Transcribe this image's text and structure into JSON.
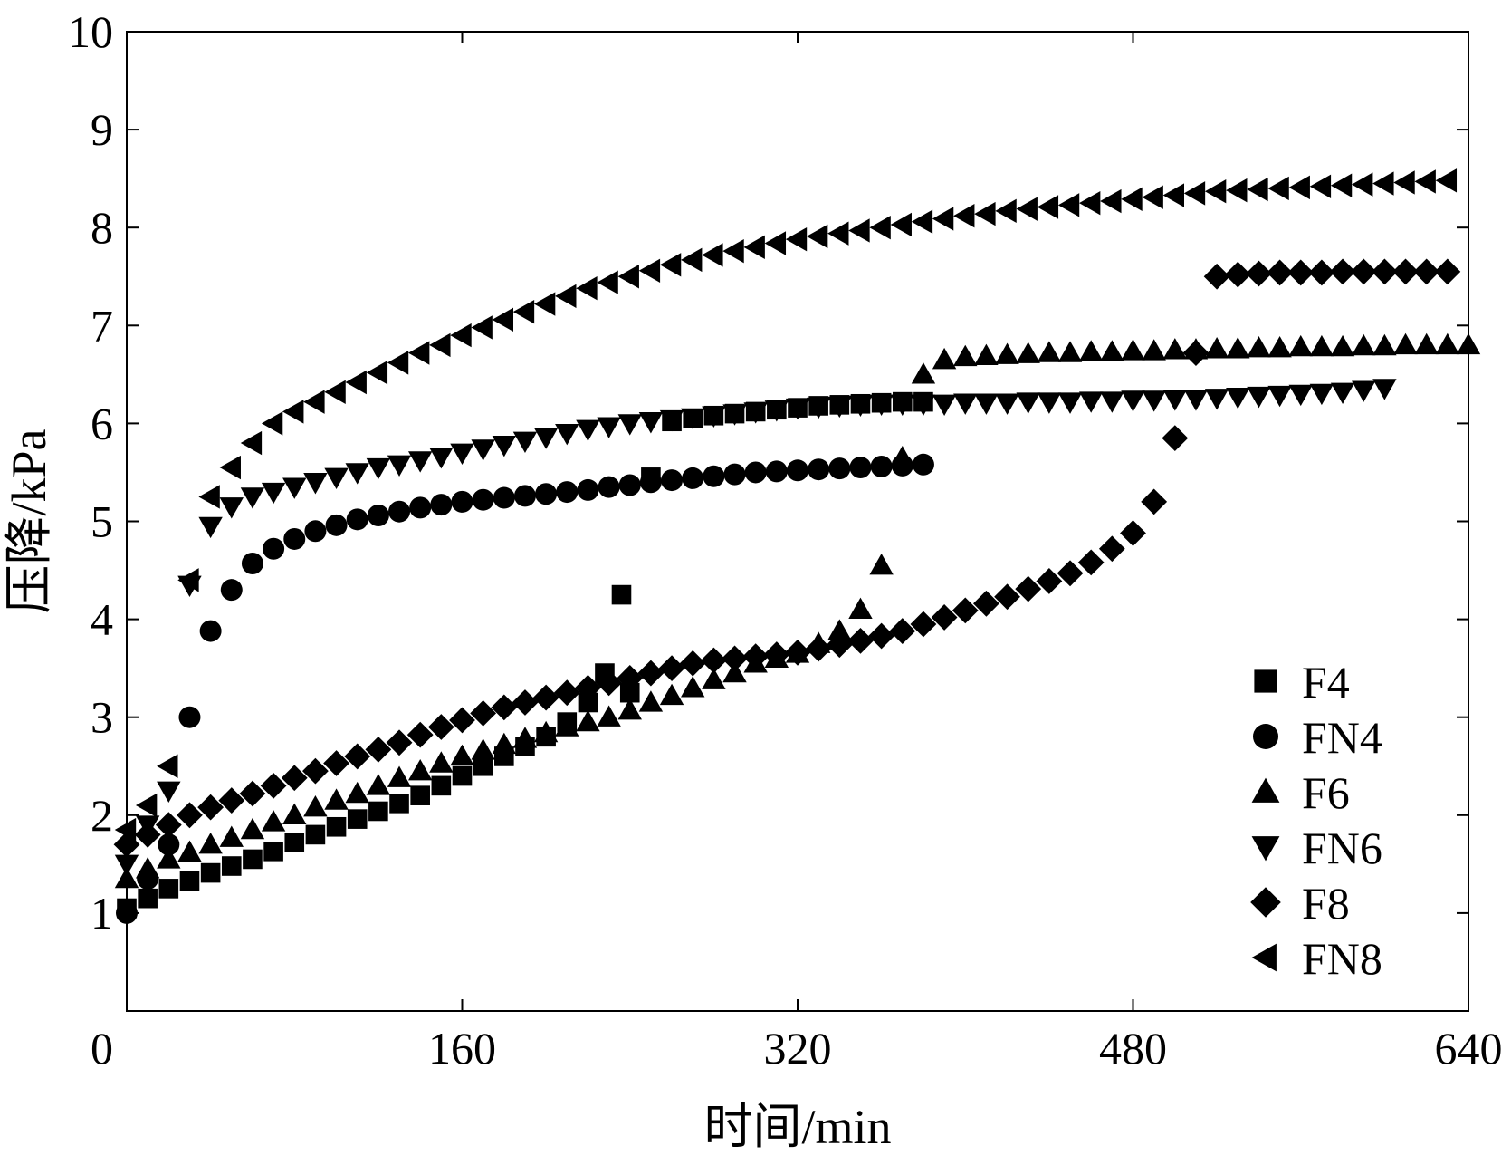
{
  "chart_data": {
    "type": "scatter",
    "xlabel": "时间/min",
    "ylabel": "压降/kPa",
    "xlim": [
      0,
      640
    ],
    "ylim": [
      0,
      10
    ],
    "x_ticks": [
      0,
      160,
      320,
      480,
      640
    ],
    "y_ticks": [
      1,
      2,
      3,
      4,
      5,
      6,
      7,
      8,
      9,
      10
    ],
    "y_zero_label": "0",
    "grid": false,
    "legend_position": "bottom-right",
    "marker_color": "#000000",
    "series": [
      {
        "name": "F4",
        "marker": "square",
        "x": [
          0,
          10,
          20,
          30,
          40,
          50,
          60,
          70,
          80,
          90,
          100,
          110,
          120,
          130,
          140,
          150,
          160,
          170,
          180,
          190,
          200,
          210,
          220,
          228,
          236,
          240,
          250,
          260,
          270,
          280,
          290,
          300,
          310,
          320,
          330,
          340,
          350,
          360,
          370,
          380
        ],
        "y": [
          1.05,
          1.15,
          1.25,
          1.33,
          1.41,
          1.48,
          1.55,
          1.63,
          1.72,
          1.8,
          1.88,
          1.96,
          2.04,
          2.12,
          2.2,
          2.3,
          2.4,
          2.5,
          2.6,
          2.7,
          2.8,
          2.95,
          3.15,
          3.45,
          4.25,
          3.25,
          5.45,
          6.02,
          6.05,
          6.08,
          6.1,
          6.12,
          6.14,
          6.16,
          6.18,
          6.19,
          6.2,
          6.21,
          6.22,
          6.22
        ]
      },
      {
        "name": "FN4",
        "x": [
          0,
          10,
          20,
          30,
          40,
          50,
          60,
          70,
          80,
          90,
          100,
          110,
          120,
          130,
          140,
          150,
          160,
          170,
          180,
          190,
          200,
          210,
          220,
          230,
          240,
          250,
          260,
          270,
          280,
          290,
          300,
          310,
          320,
          330,
          340,
          350,
          360,
          370,
          380
        ],
        "y": [
          1.0,
          1.35,
          1.7,
          3.0,
          3.88,
          4.3,
          4.57,
          4.72,
          4.82,
          4.9,
          4.96,
          5.02,
          5.06,
          5.1,
          5.14,
          5.17,
          5.2,
          5.22,
          5.24,
          5.26,
          5.28,
          5.3,
          5.32,
          5.35,
          5.37,
          5.4,
          5.42,
          5.44,
          5.46,
          5.48,
          5.5,
          5.51,
          5.52,
          5.53,
          5.54,
          5.55,
          5.56,
          5.57,
          5.58
        ],
        "marker": "circle"
      },
      {
        "name": "F6",
        "marker": "triangle-up",
        "x": [
          0,
          10,
          20,
          30,
          40,
          50,
          60,
          70,
          80,
          90,
          100,
          110,
          120,
          130,
          140,
          150,
          160,
          170,
          180,
          190,
          200,
          210,
          220,
          230,
          240,
          250,
          260,
          270,
          280,
          290,
          300,
          310,
          320,
          330,
          340,
          350,
          360,
          370,
          380,
          390,
          400,
          410,
          420,
          430,
          440,
          450,
          460,
          470,
          480,
          490,
          500,
          510,
          520,
          530,
          540,
          550,
          560,
          570,
          580,
          590,
          600,
          610,
          620,
          630,
          640
        ],
        "y": [
          1.35,
          1.45,
          1.55,
          1.62,
          1.7,
          1.77,
          1.85,
          1.93,
          2.0,
          2.08,
          2.15,
          2.22,
          2.3,
          2.38,
          2.45,
          2.53,
          2.6,
          2.66,
          2.72,
          2.78,
          2.84,
          2.9,
          2.95,
          3.0,
          3.07,
          3.15,
          3.22,
          3.3,
          3.38,
          3.45,
          3.55,
          3.6,
          3.65,
          3.75,
          3.88,
          4.1,
          4.55,
          5.65,
          6.5,
          6.65,
          6.68,
          6.69,
          6.7,
          6.71,
          6.72,
          6.72,
          6.73,
          6.73,
          6.74,
          6.74,
          6.75,
          6.75,
          6.76,
          6.76,
          6.77,
          6.77,
          6.78,
          6.78,
          6.78,
          6.79,
          6.79,
          6.8,
          6.8,
          6.8,
          6.8
        ]
      },
      {
        "name": "FN6",
        "marker": "triangle-down",
        "x": [
          0,
          10,
          20,
          30,
          40,
          50,
          60,
          70,
          80,
          90,
          100,
          110,
          120,
          130,
          140,
          150,
          160,
          170,
          180,
          190,
          200,
          210,
          220,
          230,
          240,
          250,
          260,
          270,
          280,
          290,
          300,
          310,
          320,
          330,
          340,
          350,
          360,
          370,
          380,
          390,
          400,
          410,
          420,
          430,
          440,
          450,
          460,
          470,
          480,
          490,
          500,
          510,
          520,
          530,
          540,
          550,
          560,
          570,
          580,
          590,
          600
        ],
        "y": [
          1.5,
          1.9,
          2.25,
          4.35,
          4.95,
          5.15,
          5.25,
          5.3,
          5.35,
          5.4,
          5.45,
          5.5,
          5.55,
          5.58,
          5.62,
          5.66,
          5.7,
          5.74,
          5.78,
          5.82,
          5.86,
          5.9,
          5.94,
          5.97,
          6.0,
          6.02,
          6.04,
          6.06,
          6.08,
          6.1,
          6.12,
          6.14,
          6.16,
          6.17,
          6.18,
          6.19,
          6.2,
          6.2,
          6.2,
          6.2,
          6.21,
          6.21,
          6.21,
          6.22,
          6.22,
          6.22,
          6.23,
          6.23,
          6.24,
          6.24,
          6.25,
          6.25,
          6.26,
          6.27,
          6.28,
          6.29,
          6.3,
          6.31,
          6.32,
          6.34,
          6.36
        ]
      },
      {
        "name": "F8",
        "marker": "diamond",
        "x": [
          0,
          10,
          20,
          30,
          40,
          50,
          60,
          70,
          80,
          90,
          100,
          110,
          120,
          130,
          140,
          150,
          160,
          170,
          180,
          190,
          200,
          210,
          220,
          230,
          240,
          250,
          260,
          270,
          280,
          290,
          300,
          310,
          320,
          330,
          340,
          350,
          360,
          370,
          380,
          390,
          400,
          410,
          420,
          430,
          440,
          450,
          460,
          470,
          480,
          490,
          500,
          510,
          520,
          530,
          540,
          550,
          560,
          570,
          580,
          590,
          600,
          610,
          620,
          630
        ],
        "y": [
          1.7,
          1.8,
          1.9,
          2.0,
          2.08,
          2.15,
          2.22,
          2.3,
          2.38,
          2.45,
          2.53,
          2.6,
          2.67,
          2.74,
          2.82,
          2.9,
          2.97,
          3.04,
          3.1,
          3.15,
          3.2,
          3.25,
          3.3,
          3.35,
          3.4,
          3.45,
          3.5,
          3.55,
          3.58,
          3.6,
          3.62,
          3.64,
          3.66,
          3.7,
          3.74,
          3.78,
          3.83,
          3.88,
          3.95,
          4.02,
          4.09,
          4.16,
          4.23,
          4.31,
          4.39,
          4.47,
          4.58,
          4.72,
          4.88,
          5.2,
          5.85,
          6.72,
          7.5,
          7.52,
          7.53,
          7.54,
          7.54,
          7.54,
          7.55,
          7.55,
          7.55,
          7.55,
          7.55,
          7.55
        ]
      },
      {
        "name": "FN8",
        "marker": "triangle-left",
        "x": [
          0,
          10,
          20,
          30,
          40,
          50,
          60,
          70,
          80,
          90,
          100,
          110,
          120,
          130,
          140,
          150,
          160,
          170,
          180,
          190,
          200,
          210,
          220,
          230,
          240,
          250,
          260,
          270,
          280,
          290,
          300,
          310,
          320,
          330,
          340,
          350,
          360,
          370,
          380,
          390,
          400,
          410,
          420,
          430,
          440,
          450,
          460,
          470,
          480,
          490,
          500,
          510,
          520,
          530,
          540,
          550,
          560,
          570,
          580,
          590,
          600,
          610,
          620,
          630
        ],
        "y": [
          1.85,
          2.1,
          2.5,
          4.4,
          5.25,
          5.55,
          5.8,
          6.0,
          6.12,
          6.22,
          6.32,
          6.42,
          6.52,
          6.62,
          6.72,
          6.8,
          6.9,
          6.98,
          7.06,
          7.14,
          7.22,
          7.3,
          7.38,
          7.44,
          7.5,
          7.56,
          7.62,
          7.67,
          7.72,
          7.76,
          7.8,
          7.84,
          7.88,
          7.91,
          7.94,
          7.97,
          8.0,
          8.03,
          8.06,
          8.09,
          8.12,
          8.14,
          8.17,
          8.19,
          8.21,
          8.23,
          8.25,
          8.27,
          8.29,
          8.31,
          8.33,
          8.35,
          8.37,
          8.38,
          8.39,
          8.4,
          8.41,
          8.42,
          8.43,
          8.44,
          8.45,
          8.46,
          8.47,
          8.48
        ]
      }
    ]
  }
}
